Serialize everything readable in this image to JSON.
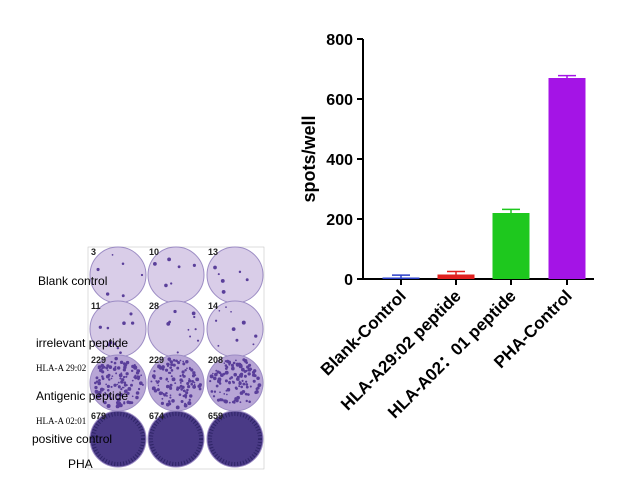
{
  "chart_data": {
    "type": "bar",
    "y_label": "spots/well",
    "categories": [
      "Blank-Control",
      "HLA-A29:02 peptide",
      "HLA-A02：01 peptide",
      "PHA-Control"
    ],
    "series": [
      {
        "values": [
          5,
          15,
          220,
          670
        ],
        "errors": [
          8,
          10,
          12,
          8
        ],
        "colors": [
          "#2a3fc8",
          "#e0201e",
          "#1ec81e",
          "#a414e6"
        ]
      }
    ],
    "ylim": [
      0,
      800
    ],
    "yticks": [
      0,
      200,
      400,
      600,
      800
    ]
  },
  "well_panel": {
    "row_labels": [
      "Blank control",
      "irrelevant peptide",
      "HLA-A 29:02",
      "Antigenic peptide",
      "HLA-A 02:01",
      "positive control",
      "PHA"
    ],
    "counts": [
      [
        "3",
        "10",
        "13"
      ],
      [
        "11",
        "28",
        "14"
      ],
      [
        "229",
        "229",
        "208"
      ],
      [
        "679",
        "674",
        "659"
      ]
    ]
  }
}
